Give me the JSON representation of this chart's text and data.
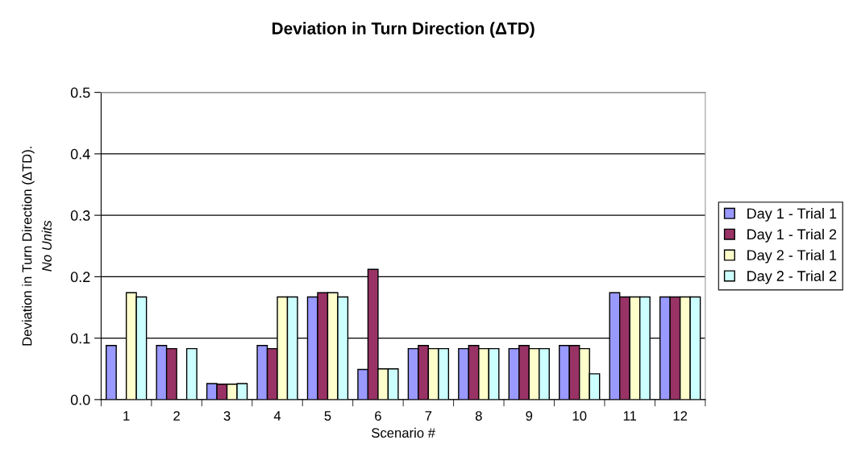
{
  "chart_data": {
    "type": "bar",
    "title": "Deviation in Turn Direction (ΔTD)",
    "xlabel": "Scenario #",
    "ylabel": "Deviation in Turn Direction (ΔTD).\nNo Units",
    "categories": [
      "1",
      "2",
      "3",
      "4",
      "5",
      "6",
      "7",
      "8",
      "9",
      "10",
      "11",
      "12"
    ],
    "series": [
      {
        "name": "Day 1 - Trial 1",
        "color": "#9999ff",
        "values": [
          0.088,
          0.088,
          0.026,
          0.088,
          0.167,
          0.049,
          0.083,
          0.083,
          0.083,
          0.088,
          0.174,
          0.167
        ]
      },
      {
        "name": "Day 1 - Trial 2",
        "color": "#993366",
        "values": [
          null,
          0.083,
          0.025,
          0.083,
          0.174,
          0.212,
          0.088,
          0.088,
          0.088,
          0.088,
          0.167,
          0.167
        ]
      },
      {
        "name": "Day 2 - Trial 1",
        "color": "#ffffcc",
        "values": [
          0.174,
          null,
          0.025,
          0.167,
          0.174,
          0.05,
          0.083,
          0.083,
          0.083,
          0.083,
          0.167,
          0.167
        ]
      },
      {
        "name": "Day 2 - Trial 2",
        "color": "#ccffff",
        "values": [
          0.167,
          0.083,
          0.026,
          0.167,
          0.167,
          0.05,
          0.083,
          0.083,
          0.083,
          0.042,
          0.167,
          0.167
        ]
      }
    ],
    "ylim": [
      0,
      0.5
    ],
    "yticks": [
      {
        "value": 0,
        "label": "0.0"
      },
      0.1,
      0.2,
      0.3,
      0.4,
      0.5
    ],
    "grid": "y",
    "legend": "right"
  }
}
